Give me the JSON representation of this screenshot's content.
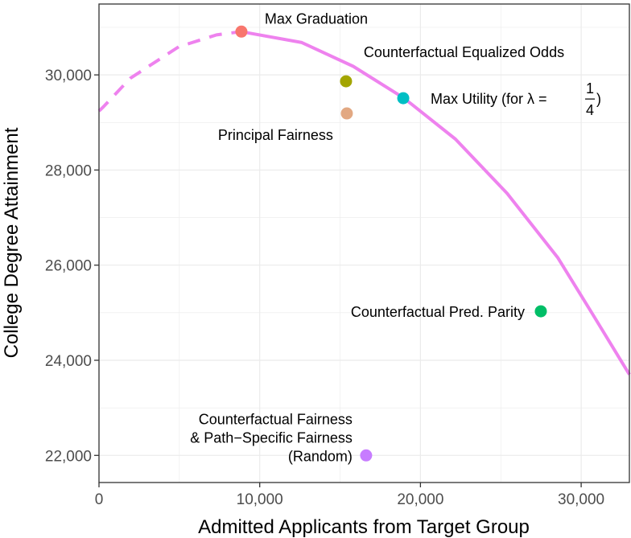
{
  "chart_data": {
    "type": "scatter",
    "title": "",
    "xlabel": "Admitted Applicants from Target Group",
    "ylabel": "College Degree Attainment",
    "xlim": [
      0,
      33000
    ],
    "ylim": [
      21430,
      31490
    ],
    "xticks": [
      0,
      10000,
      20000,
      30000
    ],
    "xtick_labels": [
      "0",
      "10,000",
      "20,000",
      "30,000"
    ],
    "yticks": [
      22000,
      24000,
      26000,
      28000,
      30000
    ],
    "ytick_labels": [
      "22,000",
      "24,000",
      "26,000",
      "28,000",
      "30,000"
    ],
    "grid": true,
    "legend": "none",
    "frontier": {
      "color": "#EE82EE",
      "dashed_until_x": 8860,
      "x": [
        0,
        250,
        1950,
        4960,
        7310,
        8860,
        9010,
        12620,
        15820,
        18980,
        22180,
        25390,
        28540,
        30690,
        33000
      ],
      "y": [
        29240,
        29320,
        29930,
        30590,
        30840,
        30910,
        30900,
        30680,
        30180,
        29510,
        28650,
        27510,
        26160,
        24980,
        23700
      ]
    },
    "points": [
      {
        "name": "Max Graduation",
        "lines": [
          "Max Graduation"
        ],
        "x": 8860,
        "y": 30910,
        "color": "#F8766D",
        "label_side": "upper-right"
      },
      {
        "name": "Counterfactual Equalized Odds",
        "lines": [
          "Counterfactual Equalized Odds"
        ],
        "x": 15370,
        "y": 29865,
        "color": "#A3A500",
        "label_side": "upper-right"
      },
      {
        "name": "Principal Fairness",
        "lines": [
          "Principal Fairness"
        ],
        "x": 15420,
        "y": 29190,
        "color": "#E2A882",
        "label_side": "lower-left"
      },
      {
        "name": "Max Utility",
        "lines": [
          "Max Utility (for λ  = ",
          ")"
        ],
        "fraction": [
          "1",
          "4"
        ],
        "x": 18930,
        "y": 29510,
        "color": "#00BFC4",
        "label_side": "right"
      },
      {
        "name": "Counterfactual Pred. Parity",
        "lines": [
          "Counterfactual Pred. Parity"
        ],
        "x": 27490,
        "y": 25030,
        "color": "#00BE67",
        "label_side": "left"
      },
      {
        "name": "Counterfactual Fairness & Path-Specific Fairness (Random)",
        "lines": [
          "Counterfactual Fairness",
          "& Path−Specific Fairness",
          "(Random)"
        ],
        "x": 16620,
        "y": 22000,
        "color": "#C77CFF",
        "label_side": "left"
      }
    ]
  }
}
